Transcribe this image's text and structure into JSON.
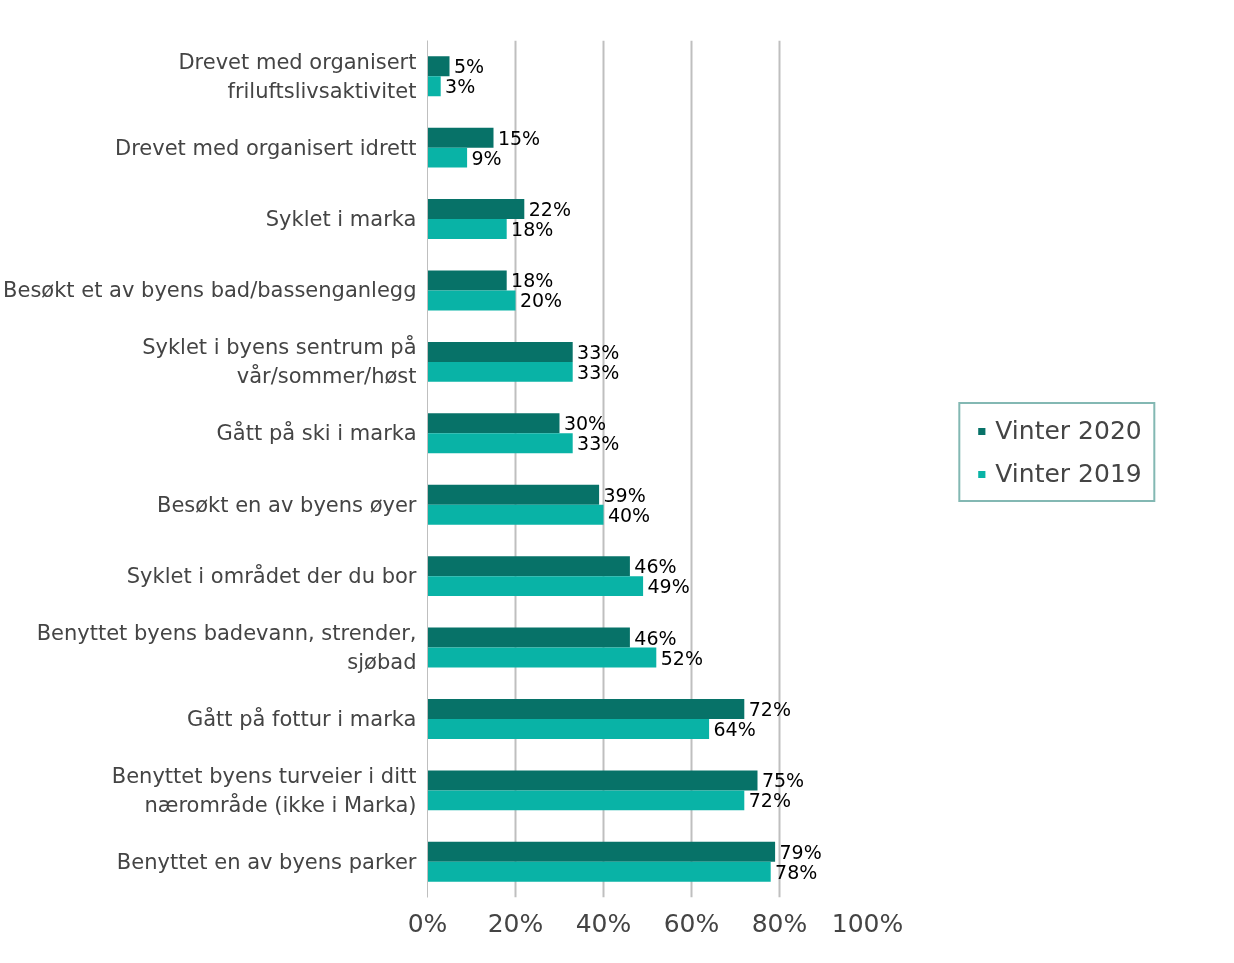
{
  "chart_data": {
    "type": "bar",
    "orientation": "horizontal",
    "categories": [
      "Drevet med organisert friluftslivsaktivitet",
      "Drevet med organisert idrett",
      "Syklet i marka",
      "Besøkt et av byens bad/bassenganlegg",
      "Syklet i byens sentrum på vår/sommer/høst",
      "Gått på ski i marka",
      "Besøkt en av byens øyer",
      "Syklet i området der du bor",
      "Benyttet byens badevann, strender, sjøbad",
      "Gått på fottur i marka",
      "Benyttet byens turveier i ditt nærområde (ikke i Marka)",
      "Benyttet en av byens parker"
    ],
    "series": [
      {
        "name": "Vinter 2020",
        "color": "#077268",
        "values": [
          5,
          15,
          22,
          18,
          33,
          30,
          39,
          46,
          46,
          72,
          75,
          79
        ],
        "value_labels": [
          "5%",
          "15%",
          "22%",
          "18%",
          "33%",
          "30%",
          "39%",
          "46%",
          "46%",
          "72%",
          "75%",
          "79%"
        ]
      },
      {
        "name": "Vinter 2019",
        "color": "#09b3a6",
        "values": [
          3,
          9,
          18,
          20,
          33,
          33,
          40,
          49,
          52,
          64,
          72,
          78
        ],
        "value_labels": [
          "3%",
          "9%",
          "18%",
          "20%",
          "33%",
          "33%",
          "40%",
          "49%",
          "52%",
          "64%",
          "72%",
          "78%"
        ]
      }
    ],
    "xlim": [
      0,
      100
    ],
    "xticks": [
      {
        "value": 0,
        "label": "0%"
      },
      {
        "value": 20,
        "label": "20%"
      },
      {
        "value": 40,
        "label": "40%"
      },
      {
        "value": 60,
        "label": "60%"
      },
      {
        "value": 80,
        "label": "80%"
      },
      {
        "value": 100,
        "label": "100%"
      }
    ],
    "grid": "x",
    "legend": "right"
  }
}
